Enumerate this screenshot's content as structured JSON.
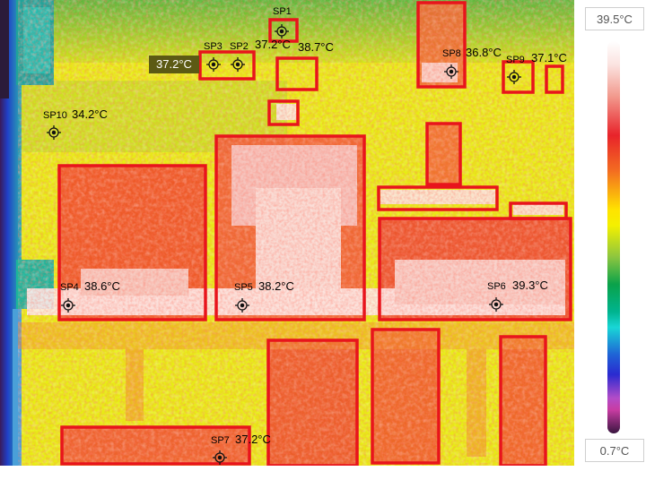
{
  "scale": {
    "max_label": "39.5°C",
    "min_label": "0.7°C"
  },
  "highlight_tag": "37.2°C",
  "spots": [
    {
      "id": "sp1",
      "name": "SP1",
      "temp": ""
    },
    {
      "id": "sp2",
      "name": "SP2",
      "temp": "37.2°C"
    },
    {
      "id": "sp3",
      "name": "SP3",
      "temp": ""
    },
    {
      "id": "sp1b",
      "name": "",
      "temp": "38.7°C"
    },
    {
      "id": "sp8",
      "name": "SP8",
      "temp": "36.8°C"
    },
    {
      "id": "sp9",
      "name": "SP9",
      "temp": "37.1°C"
    },
    {
      "id": "sp10",
      "name": "SP10",
      "temp": "34.2°C"
    },
    {
      "id": "sp4",
      "name": "SP4",
      "temp": "38.6°C"
    },
    {
      "id": "sp5",
      "name": "SP5",
      "temp": "38.2°C"
    },
    {
      "id": "sp6",
      "name": "SP6",
      "temp": "39.3°C"
    },
    {
      "id": "sp7",
      "name": "SP7",
      "temp": "37.2°C"
    }
  ],
  "colors": {
    "box": "#e8141c",
    "marker": "#111111",
    "label": "#000000"
  }
}
